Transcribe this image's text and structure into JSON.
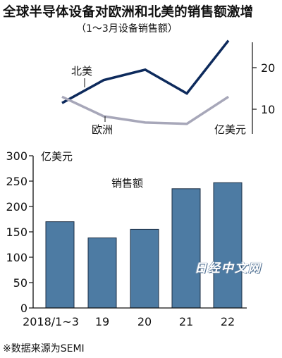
{
  "title": "全球半导体设备对欧洲和北美的销售额激增",
  "subtitle": "（1～3月设备销售额）",
  "source_note": "※数据来源为SEMI",
  "watermark": "日经中文网",
  "colors": {
    "north_america": "#0d2a5c",
    "europe": "#a7a7b9",
    "bar": "#4d7ba3",
    "bar_edge": "#1c2f45",
    "axis": "#111111"
  },
  "chart_data": [
    {
      "type": "line",
      "categories": [
        "2018/1~3",
        "19",
        "20",
        "21",
        "22"
      ],
      "series": [
        {
          "name": "北美",
          "values": [
            11.5,
            17,
            19.5,
            13.8,
            26.5
          ]
        },
        {
          "name": "欧洲",
          "values": [
            13,
            8.3,
            6.8,
            6.5,
            13
          ]
        }
      ],
      "y_ticks": [
        "20",
        "10"
      ],
      "ylabel": "亿美元",
      "ylim": [
        4,
        28
      ],
      "grid": false
    },
    {
      "type": "bar",
      "categories": [
        "2018/1~3",
        "19",
        "20",
        "21",
        "22"
      ],
      "values": [
        170,
        138,
        155,
        235,
        247
      ],
      "series_label": "销售额",
      "ylabel": "亿美元",
      "ylim": [
        0,
        300
      ],
      "y_ticks": [
        "300",
        "250",
        "200",
        "150",
        "100",
        "50",
        "0"
      ],
      "x_labels": [
        "2018/1~3",
        "19",
        "20",
        "21",
        "22"
      ],
      "grid": false
    }
  ]
}
